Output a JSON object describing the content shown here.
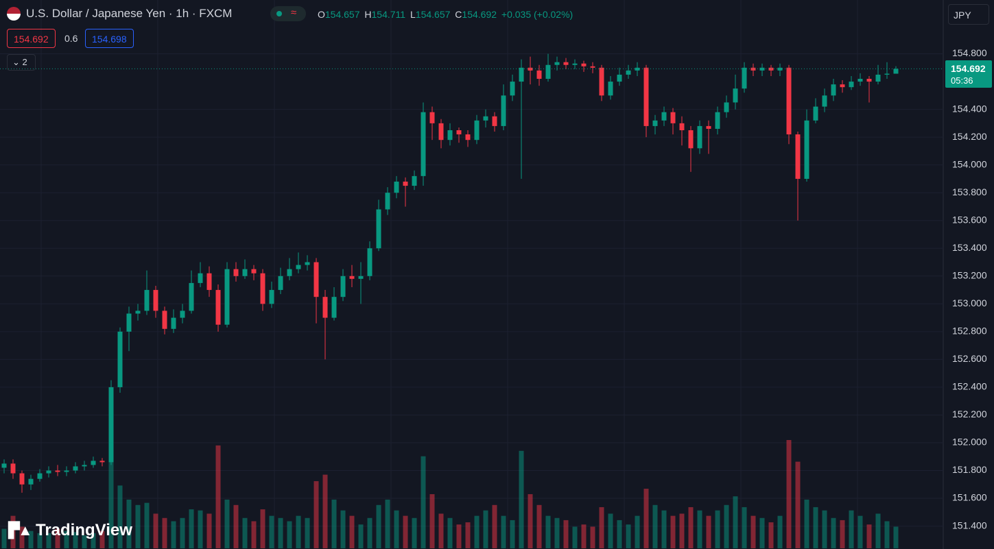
{
  "header": {
    "title": "U.S. Dollar / Japanese Yen · 1h · FXCM",
    "labels": {
      "open": "O",
      "high": "H",
      "low": "L",
      "close": "C"
    },
    "change": "+0.035 (+0.02%)",
    "bid": 154.692,
    "spread": 0.6,
    "ask": 154.698,
    "indicators": 2,
    "currency": "JPY",
    "countdown": "05:36",
    "logo": "TradingView"
  },
  "chart_data": {
    "type": "candlestick",
    "up_color": "#089981",
    "down_color": "#f23645",
    "grid": true,
    "ylim": [
      151.24,
      155.0
    ],
    "yticks": [
      {
        "value": 151.4,
        "label": "151.400"
      },
      {
        "value": 151.6,
        "label": "151.600"
      },
      {
        "value": 151.8,
        "label": "151.800"
      },
      {
        "value": 152.0,
        "label": "152.000"
      },
      {
        "value": 152.2,
        "label": "152.200"
      },
      {
        "value": 152.4,
        "label": "152.400"
      },
      {
        "value": 152.6,
        "label": "152.600"
      },
      {
        "value": 152.8,
        "label": "152.800"
      },
      {
        "value": 153.0,
        "label": "153.000"
      },
      {
        "value": 153.2,
        "label": "153.200"
      },
      {
        "value": 153.4,
        "label": "153.400"
      },
      {
        "value": 153.6,
        "label": "153.600"
      },
      {
        "value": 153.8,
        "label": "153.800"
      },
      {
        "value": 154.0,
        "label": "154.000"
      },
      {
        "value": 154.2,
        "label": "154.200"
      },
      {
        "value": 154.4,
        "label": "154.400"
      },
      {
        "value": 154.8,
        "label": "154.800"
      }
    ],
    "open": [
      151.82,
      151.85,
      151.78,
      151.7,
      151.74,
      151.78,
      151.8,
      151.79,
      151.8,
      151.83,
      151.84,
      151.87,
      151.86,
      152.4,
      152.8,
      152.93,
      152.95,
      153.1,
      152.95,
      152.82,
      152.9,
      152.95,
      153.15,
      153.22,
      153.1,
      152.85,
      153.25,
      153.2,
      153.25,
      153.22,
      153.0,
      153.1,
      153.2,
      153.25,
      153.28,
      153.3,
      153.05,
      152.9,
      153.05,
      153.2,
      153.18,
      153.2,
      153.4,
      153.68,
      153.8,
      153.88,
      153.85,
      153.92,
      154.38,
      154.3,
      154.18,
      154.25,
      154.22,
      154.18,
      154.32,
      154.35,
      154.28,
      154.5,
      154.6,
      154.7,
      154.68,
      154.62,
      154.72,
      154.74,
      154.72,
      154.73,
      154.71,
      154.7,
      154.5,
      154.6,
      154.65,
      154.68,
      154.7,
      154.28,
      154.32,
      154.38,
      154.3,
      154.25,
      154.12,
      154.28,
      154.26,
      154.38,
      154.45,
      154.55,
      154.7,
      154.68,
      154.7,
      154.68,
      154.7,
      154.22,
      153.9,
      154.32,
      154.42,
      154.5,
      154.58,
      154.56,
      154.6,
      154.62,
      154.6,
      154.65,
      154.657
    ],
    "high": [
      151.88,
      151.88,
      151.8,
      151.77,
      151.81,
      151.83,
      151.84,
      151.83,
      151.86,
      151.87,
      151.9,
      151.89,
      152.45,
      152.83,
      152.98,
      153.0,
      153.24,
      153.13,
      152.98,
      152.96,
      153.0,
      153.24,
      153.3,
      153.27,
      153.14,
      153.3,
      153.3,
      153.32,
      153.28,
      153.25,
      153.16,
      153.26,
      153.33,
      153.37,
      153.35,
      153.33,
      153.1,
      153.12,
      153.25,
      153.28,
      153.3,
      153.45,
      153.75,
      153.84,
      153.92,
      153.91,
      153.96,
      154.45,
      154.42,
      154.33,
      154.3,
      154.27,
      154.25,
      154.36,
      154.4,
      154.38,
      154.58,
      154.65,
      154.76,
      154.78,
      154.72,
      154.8,
      154.78,
      154.77,
      154.76,
      154.75,
      154.74,
      154.72,
      154.64,
      154.7,
      154.72,
      154.74,
      154.72,
      154.36,
      154.42,
      154.41,
      154.35,
      154.28,
      154.32,
      154.32,
      154.42,
      154.5,
      154.65,
      154.74,
      154.73,
      154.73,
      154.72,
      154.73,
      154.72,
      154.24,
      154.4,
      154.48,
      154.55,
      154.62,
      154.61,
      154.64,
      154.66,
      154.64,
      154.72,
      154.74,
      154.711
    ],
    "low": [
      151.78,
      151.74,
      151.64,
      151.66,
      151.72,
      151.75,
      151.76,
      151.76,
      151.78,
      151.8,
      151.82,
      151.83,
      151.84,
      152.36,
      152.66,
      152.88,
      152.92,
      152.9,
      152.78,
      152.79,
      152.86,
      152.93,
      153.12,
      153.05,
      152.8,
      152.83,
      153.16,
      153.18,
      153.17,
      152.95,
      152.97,
      153.07,
      153.17,
      153.22,
      153.24,
      152.86,
      152.6,
      152.88,
      153.02,
      153.12,
      153.0,
      153.17,
      153.38,
      153.64,
      153.76,
      153.7,
      153.82,
      153.85,
      154.18,
      154.12,
      154.14,
      154.16,
      154.13,
      154.15,
      154.27,
      154.24,
      154.25,
      154.46,
      153.9,
      154.58,
      154.57,
      154.6,
      154.68,
      154.69,
      154.69,
      154.67,
      154.66,
      154.46,
      154.47,
      154.57,
      154.62,
      154.64,
      154.2,
      154.22,
      154.28,
      154.22,
      154.14,
      153.95,
      154.08,
      154.08,
      154.22,
      154.34,
      154.4,
      154.52,
      154.64,
      154.64,
      154.64,
      154.64,
      154.15,
      153.6,
      153.88,
      154.3,
      154.38,
      154.46,
      154.52,
      154.54,
      154.57,
      154.45,
      154.58,
      154.62,
      154.657
    ],
    "close": [
      151.85,
      151.78,
      151.7,
      151.74,
      151.78,
      151.8,
      151.79,
      151.8,
      151.83,
      151.84,
      151.87,
      151.86,
      152.4,
      152.8,
      152.93,
      152.95,
      153.1,
      152.95,
      152.82,
      152.9,
      152.95,
      153.15,
      153.22,
      153.1,
      152.85,
      153.25,
      153.2,
      153.25,
      153.22,
      153.0,
      153.1,
      153.2,
      153.25,
      153.28,
      153.3,
      153.05,
      152.9,
      153.05,
      153.2,
      153.18,
      153.2,
      153.4,
      153.68,
      153.8,
      153.88,
      153.85,
      153.92,
      154.38,
      154.3,
      154.18,
      154.25,
      154.22,
      154.18,
      154.32,
      154.35,
      154.28,
      154.5,
      154.6,
      154.7,
      154.68,
      154.62,
      154.72,
      154.74,
      154.72,
      154.73,
      154.71,
      154.7,
      154.5,
      154.6,
      154.65,
      154.68,
      154.7,
      154.28,
      154.32,
      154.38,
      154.3,
      154.25,
      154.12,
      154.28,
      154.26,
      154.38,
      154.45,
      154.55,
      154.7,
      154.68,
      154.7,
      154.68,
      154.7,
      154.22,
      153.9,
      154.32,
      154.42,
      154.5,
      154.58,
      154.56,
      154.6,
      154.62,
      154.6,
      154.65,
      154.657,
      154.692
    ],
    "volume": [
      18,
      30,
      20,
      16,
      14,
      14,
      18,
      16,
      15,
      12,
      14,
      16,
      80,
      58,
      45,
      40,
      42,
      32,
      28,
      25,
      28,
      36,
      35,
      32,
      95,
      45,
      40,
      28,
      25,
      36,
      30,
      28,
      25,
      30,
      28,
      62,
      68,
      45,
      35,
      30,
      22,
      28,
      40,
      45,
      35,
      30,
      28,
      85,
      50,
      32,
      28,
      22,
      24,
      30,
      35,
      40,
      30,
      26,
      90,
      50,
      40,
      30,
      28,
      26,
      20,
      22,
      20,
      38,
      32,
      26,
      22,
      30,
      55,
      40,
      35,
      30,
      32,
      38,
      35,
      30,
      35,
      40,
      48,
      38,
      30,
      28,
      24,
      30,
      100,
      80,
      45,
      38,
      35,
      28,
      26,
      35,
      30,
      22,
      32,
      25,
      20
    ]
  }
}
